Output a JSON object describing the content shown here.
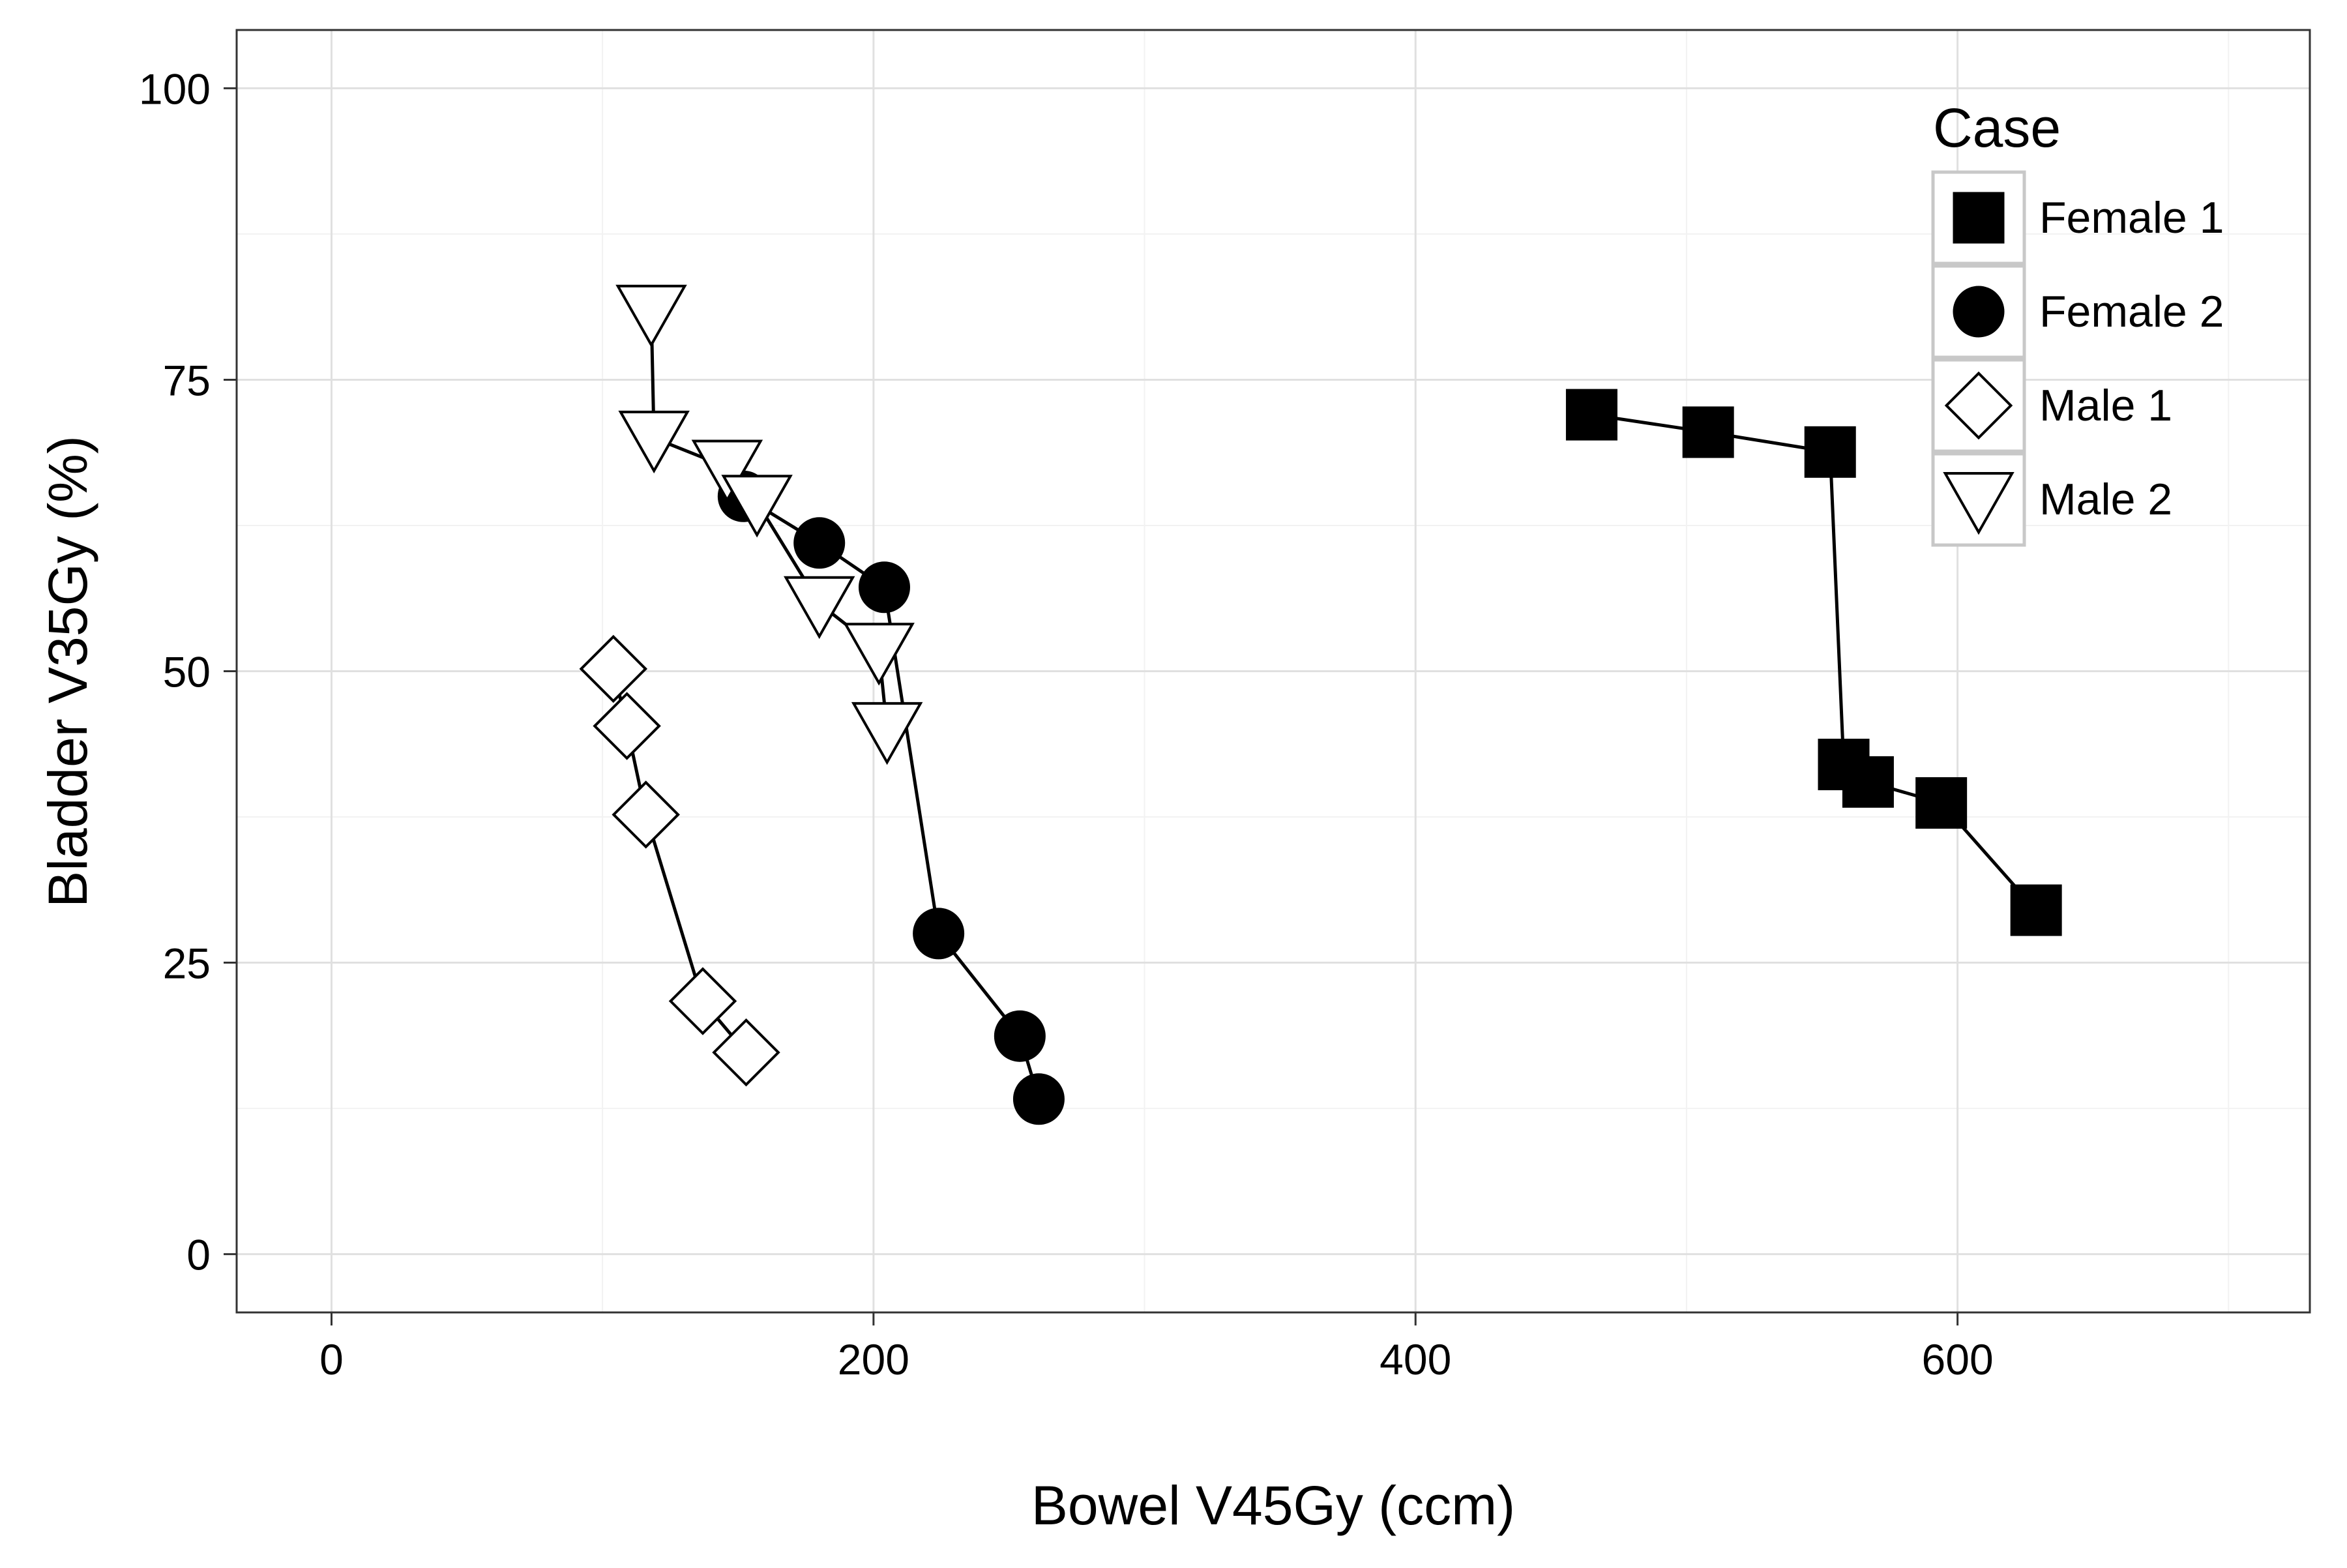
{
  "chart_data": {
    "type": "line",
    "xlabel": "Bowel V45Gy (ccm)",
    "ylabel": "Bladder V35Gy (%)",
    "xlim": [
      -35,
      730
    ],
    "ylim": [
      -5,
      105
    ],
    "x_ticks": [
      0,
      200,
      400,
      600
    ],
    "x_minor": [
      100,
      300,
      500,
      700
    ],
    "y_ticks": [
      0,
      25,
      50,
      75,
      100
    ],
    "y_minor": [
      12.5,
      37.5,
      62.5,
      87.5
    ],
    "x_tick_labels": [
      "0",
      "200",
      "400",
      "600"
    ],
    "y_tick_labels": [
      "0",
      "25",
      "50",
      "75",
      "100"
    ],
    "grid": true,
    "legend": {
      "title": "Case",
      "position": "top-right"
    },
    "series": [
      {
        "name": "Female 1",
        "marker": "square-filled",
        "x": [
          465,
          508,
          553,
          558,
          567,
          594,
          629
        ],
        "y": [
          72,
          70.5,
          68.8,
          42,
          40.5,
          38.7,
          29.5
        ]
      },
      {
        "name": "Female 2",
        "marker": "circle-filled",
        "x": [
          152,
          180,
          204,
          224,
          254,
          261
        ],
        "y": [
          65,
          61,
          57.2,
          27.5,
          18.7,
          13.3
        ]
      },
      {
        "name": "Male 1",
        "marker": "diamond-open",
        "x": [
          104,
          109,
          116,
          137,
          153
        ],
        "y": [
          50.2,
          45.3,
          37.7,
          21.7,
          17.3
        ]
      },
      {
        "name": "Male 2",
        "marker": "triangle-down-open",
        "x": [
          118,
          119,
          146,
          157,
          180,
          202,
          205
        ],
        "y": [
          80.8,
          70,
          67.5,
          64.5,
          55.8,
          51.8,
          45
        ]
      }
    ]
  }
}
